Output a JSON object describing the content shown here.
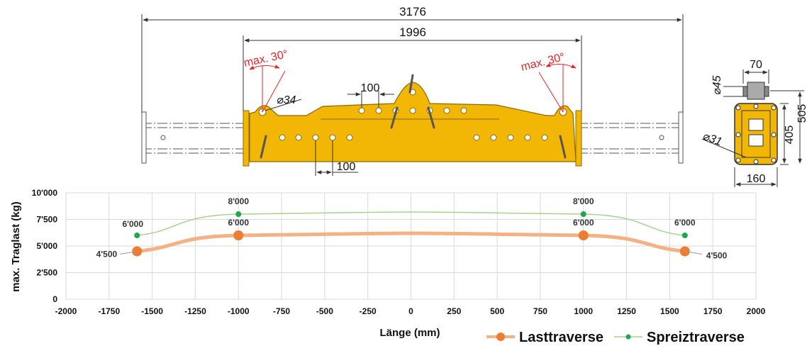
{
  "drawing": {
    "dims": {
      "overall_length": "3176",
      "inner_length": "1996",
      "hole_pitch_top": "100",
      "hole_pitch_bottom": "100",
      "pin_diameter": "⌀34",
      "max_angle_left": "max. 30°",
      "max_angle_right": "max. 30°"
    },
    "side_view": {
      "diameter_top": "⌀45",
      "width_top": "70",
      "height_inner": "405",
      "height_total": "505",
      "diameter_bolt": "⌀31",
      "width_bottom": "160"
    },
    "colors": {
      "beam": "#F2B705",
      "beam_edge": "#8a6a00",
      "dim_red": "#e3262b",
      "dim_line": "#333333"
    }
  },
  "chart_data": {
    "type": "line",
    "xlabel": "Länge (mm)",
    "ylabel": "max. Traglast (kg)",
    "xlim": [
      -2000,
      2000
    ],
    "ylim": [
      0,
      10000
    ],
    "x_ticks": [
      "-2000",
      "-1750",
      "-1500",
      "-1250",
      "-1000",
      "-750",
      "-500",
      "-250",
      "0",
      "250",
      "500",
      "750",
      "1000",
      "1250",
      "1500",
      "1750",
      "2000"
    ],
    "y_ticks": [
      "0",
      "2'500",
      "5'000",
      "7'500",
      "10'000"
    ],
    "grid": true,
    "legend_position": "bottom-right",
    "series": [
      {
        "name": "Lasttraverse",
        "color": "#ED7D31",
        "line_color": "#F4B183",
        "x": [
          -1588,
          -1000,
          1000,
          1588
        ],
        "y": [
          4500,
          6000,
          6000,
          4500
        ],
        "labels": [
          "4'500",
          "6'000",
          "6'000",
          "4'500"
        ]
      },
      {
        "name": "Spreiztraverse",
        "color": "#1FA84B",
        "line_color": "#A9D18E",
        "x": [
          -1588,
          -1000,
          1000,
          1588
        ],
        "y": [
          6000,
          8000,
          8000,
          6000
        ],
        "labels": [
          "6'000",
          "8'000",
          "8'000",
          "6'000"
        ]
      }
    ]
  }
}
